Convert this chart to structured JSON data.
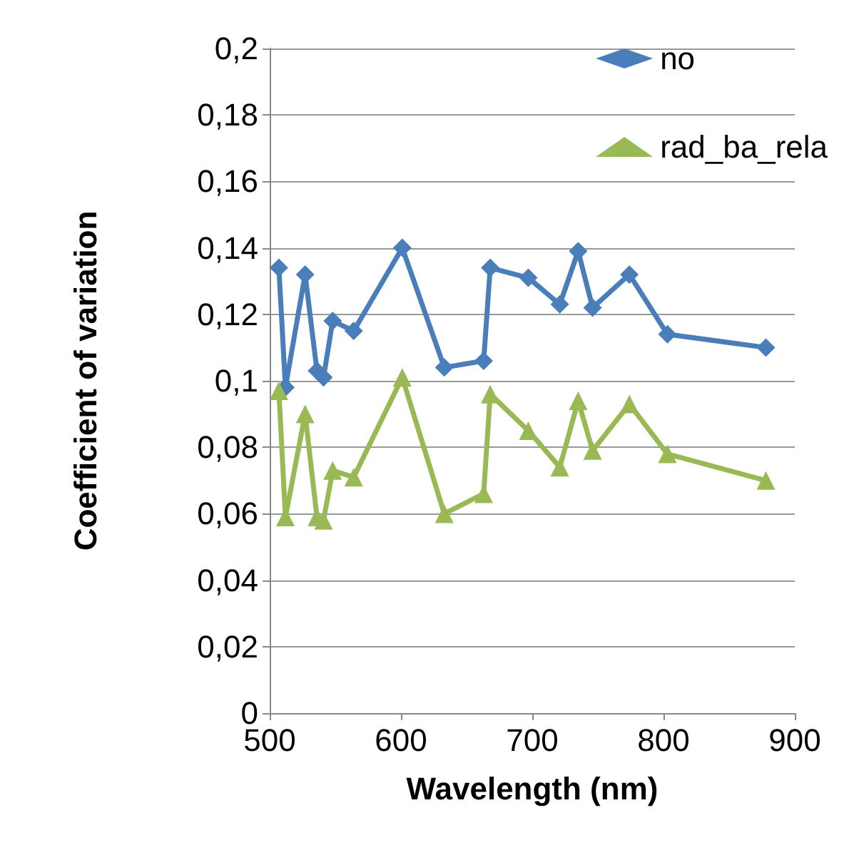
{
  "chart_data": {
    "type": "line",
    "xlabel": "Wavelength (nm)",
    "ylabel": "Coefficient of variation",
    "x": [
      507,
      512,
      527,
      536,
      541,
      548,
      564,
      601,
      633,
      663,
      668,
      697,
      721,
      735,
      746,
      774,
      803,
      878
    ],
    "series": [
      {
        "name": "no",
        "color": "#4a7ebb",
        "marker": "diamond",
        "values": [
          0.134,
          0.098,
          0.132,
          0.103,
          0.101,
          0.118,
          0.115,
          0.14,
          0.104,
          0.106,
          0.134,
          0.131,
          0.123,
          0.139,
          0.122,
          0.132,
          0.114,
          0.11
        ]
      },
      {
        "name": "rad_ba_rela",
        "color": "#98b954",
        "marker": "triangle",
        "values": [
          0.097,
          0.059,
          0.09,
          0.059,
          0.058,
          0.073,
          0.071,
          0.101,
          0.06,
          0.066,
          0.096,
          0.085,
          0.074,
          0.094,
          0.079,
          0.093,
          0.078,
          0.07
        ]
      }
    ],
    "xlim": [
      500,
      900
    ],
    "xticks": [
      500,
      600,
      700,
      800,
      900
    ],
    "ylim": [
      0,
      0.2
    ],
    "yticks": [
      0,
      {
        "value": 0.02,
        "label": "0,02"
      },
      {
        "value": 0.04,
        "label": "0,04"
      },
      {
        "value": 0.06,
        "label": "0,06"
      },
      {
        "value": 0.08,
        "label": "0,08"
      },
      {
        "value": 0.1,
        "label": "0,1"
      },
      {
        "value": 0.12,
        "label": "0,12"
      },
      {
        "value": 0.14,
        "label": "0,14"
      },
      {
        "value": 0.16,
        "label": "0,16"
      },
      {
        "value": 0.18,
        "label": "0,18"
      },
      {
        "value": 0.2,
        "label": "0,2"
      }
    ],
    "grid": "y",
    "legend": "top right"
  }
}
